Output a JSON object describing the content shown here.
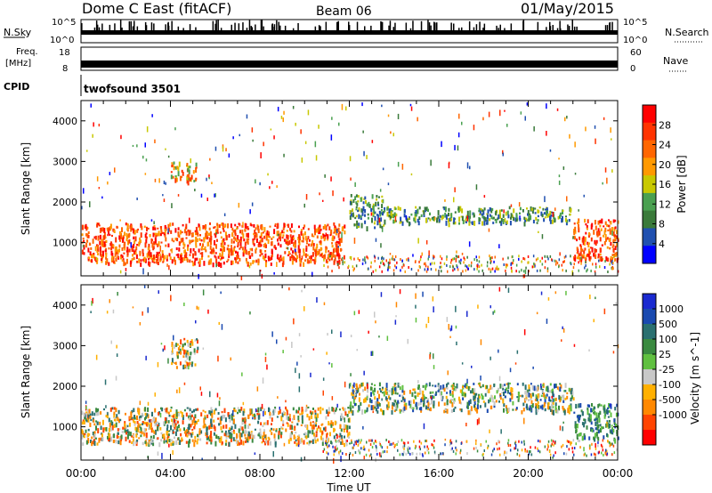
{
  "header": {
    "site": "Dome C East (fitACF)",
    "beam": "Beam 06",
    "date": "01/May/2015"
  },
  "strips": {
    "nsky_label": "N.Sky",
    "nsky_top": "10^5",
    "nsky_bottom": "10^0",
    "nsearch_label": "N.Search",
    "nsearch_top": "10^5",
    "nsearch_bottom": "10^0",
    "freq_label_1": "Freq.",
    "freq_label_2": "[MHz]",
    "freq_top": "18",
    "freq_bottom": "8",
    "nave_label": "Nave",
    "nave_top": "60",
    "nave_bottom": "0",
    "cpid_label": "CPID",
    "cpid_value": "twofsound 3501"
  },
  "colors": {
    "power": [
      "#0000ff",
      "#2050b0",
      "#3a7a3a",
      "#4aa050",
      "#c8c800",
      "#ff9900",
      "#ff6600",
      "#ff3300",
      "#ff0000"
    ],
    "velocity": [
      "#ff0000",
      "#ff4400",
      "#ff8800",
      "#ffb000",
      "#c8c8c8",
      "#60c040",
      "#3a8a40",
      "#2a7070",
      "#1a4ab0",
      "#1a2ad0"
    ]
  },
  "chart_data": [
    {
      "type": "heatmap",
      "title": "",
      "xlabel": "",
      "ylabel": "Slant Range [km]",
      "xlim": [
        "00:00",
        "00:00"
      ],
      "ylim": [
        180,
        4500
      ],
      "xticks": [
        "00:00",
        "04:00",
        "08:00",
        "12:00",
        "16:00",
        "20:00",
        "00:00"
      ],
      "yticks": [
        1000,
        2000,
        3000,
        4000
      ],
      "colorbar": {
        "label": "Power [dB]",
        "ticks": [
          4,
          8,
          12,
          16,
          20,
          24,
          28
        ],
        "range": [
          0,
          32
        ]
      },
      "features": [
        {
          "time_h": [
            0,
            11.8
          ],
          "range_km": [
            500,
            1500
          ],
          "level": "high"
        },
        {
          "time_h": [
            4.0,
            5.2
          ],
          "range_km": [
            2500,
            3000
          ],
          "level": "medium"
        },
        {
          "time_h": [
            12.0,
            13.5
          ],
          "range_km": [
            1400,
            2200
          ],
          "level": "low"
        },
        {
          "time_h": [
            13.5,
            22.0
          ],
          "range_km": [
            1500,
            1900
          ],
          "level": "low"
        },
        {
          "time_h": [
            22.0,
            24.0
          ],
          "range_km": [
            600,
            1600
          ],
          "level": "high"
        }
      ]
    },
    {
      "type": "heatmap",
      "title": "",
      "xlabel": "Time UT",
      "ylabel": "Slant Range [km]",
      "xlim": [
        "00:00",
        "00:00"
      ],
      "ylim": [
        180,
        4500
      ],
      "xticks": [
        "00:00",
        "04:00",
        "08:00",
        "12:00",
        "16:00",
        "20:00",
        "00:00"
      ],
      "yticks": [
        1000,
        2000,
        3000,
        4000
      ],
      "colorbar": {
        "label": "Velocity [m s^-1]",
        "ticks": [
          -1000,
          -500,
          -100,
          -25,
          25,
          100,
          500,
          1000
        ]
      },
      "features": [
        {
          "time_h": [
            0,
            12.0
          ],
          "range_km": [
            600,
            1500
          ],
          "level": "negative"
        },
        {
          "time_h": [
            4.0,
            5.2
          ],
          "range_km": [
            2500,
            3200
          ],
          "level": "negative"
        },
        {
          "time_h": [
            12.0,
            22.0
          ],
          "range_km": [
            1400,
            2100
          ],
          "level": "mixed"
        },
        {
          "time_h": [
            22.0,
            24.0
          ],
          "range_km": [
            700,
            1600
          ],
          "level": "positive"
        }
      ]
    }
  ]
}
